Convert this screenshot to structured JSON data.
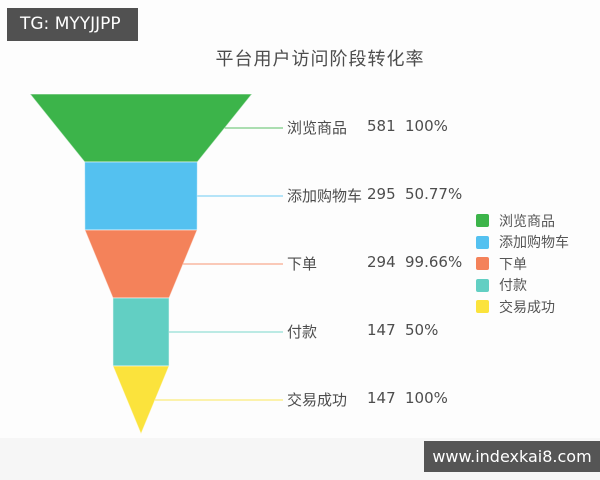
{
  "watermarks": {
    "top": "TG: MYYJJPP",
    "bottom": "www.indexkai8.com"
  },
  "chart_data": {
    "type": "funnel",
    "title": "平台用户访问阶段转化率",
    "legend_position": "right",
    "max_value": 581,
    "stages": [
      {
        "label": "浏览商品",
        "value": 581,
        "percent": "100%",
        "color": "#3cb44a"
      },
      {
        "label": "添加购物车",
        "value": 295,
        "percent": "50.77%",
        "color": "#54c1f0"
      },
      {
        "label": "下单",
        "value": 294,
        "percent": "99.66%",
        "color": "#f4825a"
      },
      {
        "label": "付款",
        "value": 147,
        "percent": "50%",
        "color": "#62cfc3"
      },
      {
        "label": "交易成功",
        "value": 147,
        "percent": "100%",
        "color": "#fbe33c"
      }
    ],
    "legend": [
      "浏览商品",
      "添加购物车",
      "下单",
      "付款",
      "交易成功"
    ]
  }
}
